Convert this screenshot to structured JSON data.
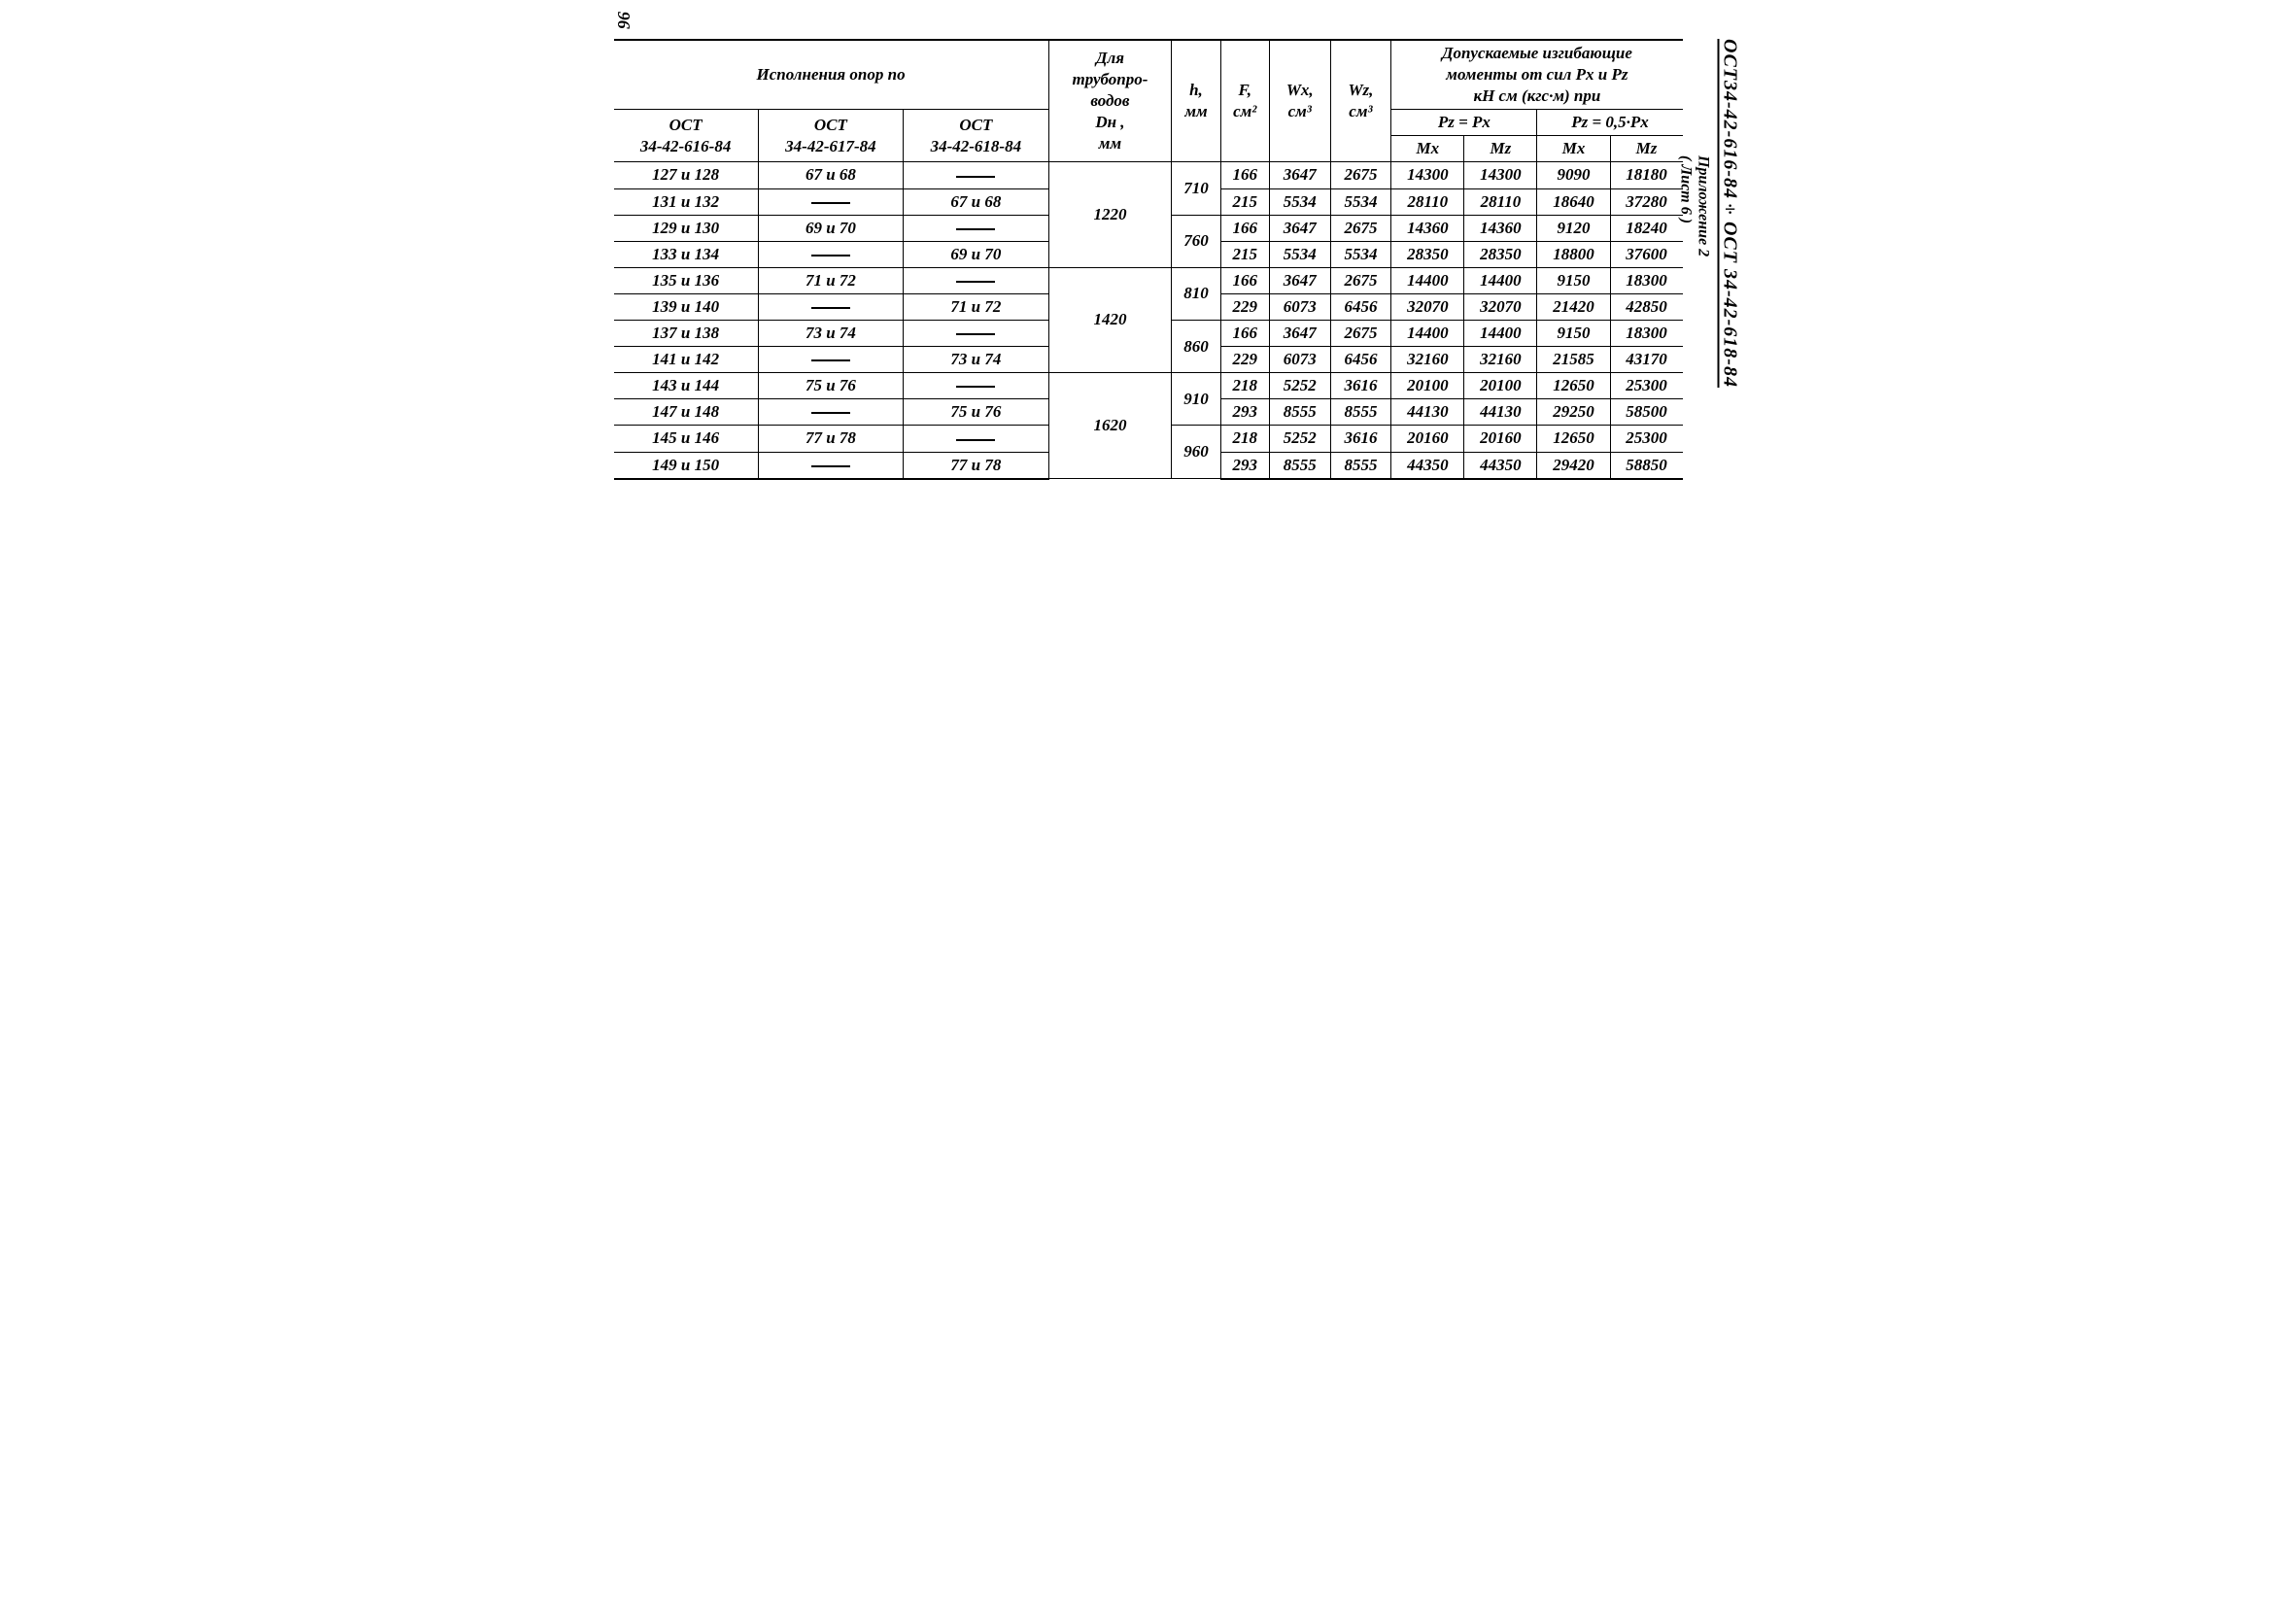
{
  "page_number": "96",
  "side_title": "ОСТ34-42-616-84÷ОСТ 34-42-618-84",
  "side_sub1": "Приложение 2",
  "side_sub2": "( Лист 6 )",
  "headers": {
    "executions": "Исполнения  опор  по",
    "ost1": "ОСТ\n34-42-616-84",
    "ost2": "ОСТ\n34-42-617-84",
    "ost3": "ОСТ\n34-42-618-84",
    "pipe": "Для\nтрубопро-\nводов\nDн ,\nмм",
    "h": "h,\nмм",
    "F": "F,\nсм²",
    "Wx": "Wx,\nсм³",
    "Wz": "Wz,\nсм³",
    "moments": "Допускаемые  изгибающие\nмоменты от сил Рх и Рz\nкН см (кгс·м)   при",
    "pz_eq_px": "Pz = Px",
    "pz_half_px": "Pz = 0,5·Px",
    "Mx": "Mx",
    "Mz": "Mz"
  },
  "rows": [
    {
      "c1": "127 и 128",
      "c2": "67 и 68",
      "c3": "—",
      "dn": "1220",
      "h": "710",
      "F": "166",
      "Wx": "3647",
      "Wz": "2675",
      "Mx1": "14300",
      "Mz1": "14300",
      "Mx2": "9090",
      "Mz2": "18180"
    },
    {
      "c1": "131 и 132",
      "c2": "—",
      "c3": "67 и 68",
      "dn": "",
      "h": "",
      "F": "215",
      "Wx": "5534",
      "Wz": "5534",
      "Mx1": "28110",
      "Mz1": "28110",
      "Mx2": "18640",
      "Mz2": "37280"
    },
    {
      "c1": "129 и 130",
      "c2": "69 и 70",
      "c3": "—",
      "dn": "",
      "h": "760",
      "F": "166",
      "Wx": "3647",
      "Wz": "2675",
      "Mx1": "14360",
      "Mz1": "14360",
      "Mx2": "9120",
      "Mz2": "18240"
    },
    {
      "c1": "133 и 134",
      "c2": "—",
      "c3": "69 и 70",
      "dn": "",
      "h": "",
      "F": "215",
      "Wx": "5534",
      "Wz": "5534",
      "Mx1": "28350",
      "Mz1": "28350",
      "Mx2": "18800",
      "Mz2": "37600"
    },
    {
      "c1": "135 и 136",
      "c2": "71 и 72",
      "c3": "—",
      "dn": "1420",
      "h": "810",
      "F": "166",
      "Wx": "3647",
      "Wz": "2675",
      "Mx1": "14400",
      "Mz1": "14400",
      "Mx2": "9150",
      "Mz2": "18300"
    },
    {
      "c1": "139 и 140",
      "c2": "—",
      "c3": "71 и 72",
      "dn": "",
      "h": "",
      "F": "229",
      "Wx": "6073",
      "Wz": "6456",
      "Mx1": "32070",
      "Mz1": "32070",
      "Mx2": "21420",
      "Mz2": "42850"
    },
    {
      "c1": "137 и 138",
      "c2": "73 и 74",
      "c3": "—",
      "dn": "",
      "h": "860",
      "F": "166",
      "Wx": "3647",
      "Wz": "2675",
      "Mx1": "14400",
      "Mz1": "14400",
      "Mx2": "9150",
      "Mz2": "18300"
    },
    {
      "c1": "141 и 142",
      "c2": "—",
      "c3": "73 и 74",
      "dn": "",
      "h": "",
      "F": "229",
      "Wx": "6073",
      "Wz": "6456",
      "Mx1": "32160",
      "Mz1": "32160",
      "Mx2": "21585",
      "Mz2": "43170"
    },
    {
      "c1": "143 и 144",
      "c2": "75 и 76",
      "c3": "—",
      "dn": "1620",
      "h": "910",
      "F": "218",
      "Wx": "5252",
      "Wz": "3616",
      "Mx1": "20100",
      "Mz1": "20100",
      "Mx2": "12650",
      "Mz2": "25300"
    },
    {
      "c1": "147 и 148",
      "c2": "—",
      "c3": "75 и 76",
      "dn": "",
      "h": "",
      "F": "293",
      "Wx": "8555",
      "Wz": "8555",
      "Mx1": "44130",
      "Mz1": "44130",
      "Mx2": "29250",
      "Mz2": "58500"
    },
    {
      "c1": "145 и 146",
      "c2": "77 и 78",
      "c3": "—",
      "dn": "",
      "h": "960",
      "F": "218",
      "Wx": "5252",
      "Wz": "3616",
      "Mx1": "20160",
      "Mz1": "20160",
      "Mx2": "12650",
      "Mz2": "25300"
    },
    {
      "c1": "149 и 150",
      "c2": "—",
      "c3": "77 и 78",
      "dn": "",
      "h": "",
      "F": "293",
      "Wx": "8555",
      "Wz": "8555",
      "Mx1": "44350",
      "Mz1": "44350",
      "Mx2": "29420",
      "Mz2": "58850"
    }
  ]
}
